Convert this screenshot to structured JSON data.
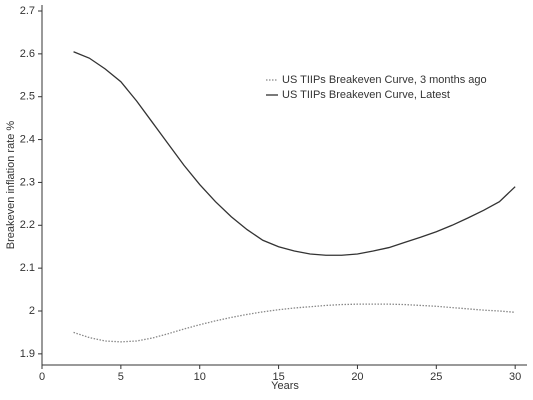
{
  "chart_data": {
    "type": "line",
    "x_label": "Years",
    "y_label": "Breakeven inflation rate %",
    "x": [
      2,
      3,
      4,
      5,
      6,
      7,
      8,
      9,
      10,
      11,
      12,
      13,
      14,
      15,
      16,
      17,
      18,
      19,
      20,
      21,
      22,
      23,
      24,
      25,
      26,
      27,
      28,
      29,
      30
    ],
    "series": [
      {
        "name": "US TIIPs Breakeven Curve, 3 months ago",
        "color": "#888888",
        "style": "dotted",
        "values": [
          1.95,
          1.938,
          1.93,
          1.928,
          1.93,
          1.937,
          1.947,
          1.958,
          1.968,
          1.977,
          1.985,
          1.992,
          1.998,
          2.003,
          2.007,
          2.01,
          2.013,
          2.015,
          2.016,
          2.016,
          2.016,
          2.015,
          2.013,
          2.011,
          2.008,
          2.005,
          2.002,
          2.0,
          1.997
        ]
      },
      {
        "name": "US TIIPs Breakeven Curve, Latest",
        "color": "#333333",
        "style": "solid",
        "values": [
          2.605,
          2.59,
          2.565,
          2.535,
          2.49,
          2.44,
          2.39,
          2.34,
          2.295,
          2.255,
          2.22,
          2.19,
          2.165,
          2.15,
          2.14,
          2.133,
          2.13,
          2.13,
          2.133,
          2.14,
          2.148,
          2.16,
          2.172,
          2.185,
          2.2,
          2.217,
          2.235,
          2.255,
          2.29
        ]
      }
    ],
    "xlim": [
      0,
      30.75
    ],
    "ylim": [
      1.874,
      2.714
    ],
    "xticks": [
      0,
      5,
      10,
      15,
      20,
      25,
      30
    ],
    "yticks": [
      1.9,
      2.0,
      2.1,
      2.2,
      2.3,
      2.4,
      2.5,
      2.6,
      2.7
    ],
    "legend": "upper right"
  }
}
